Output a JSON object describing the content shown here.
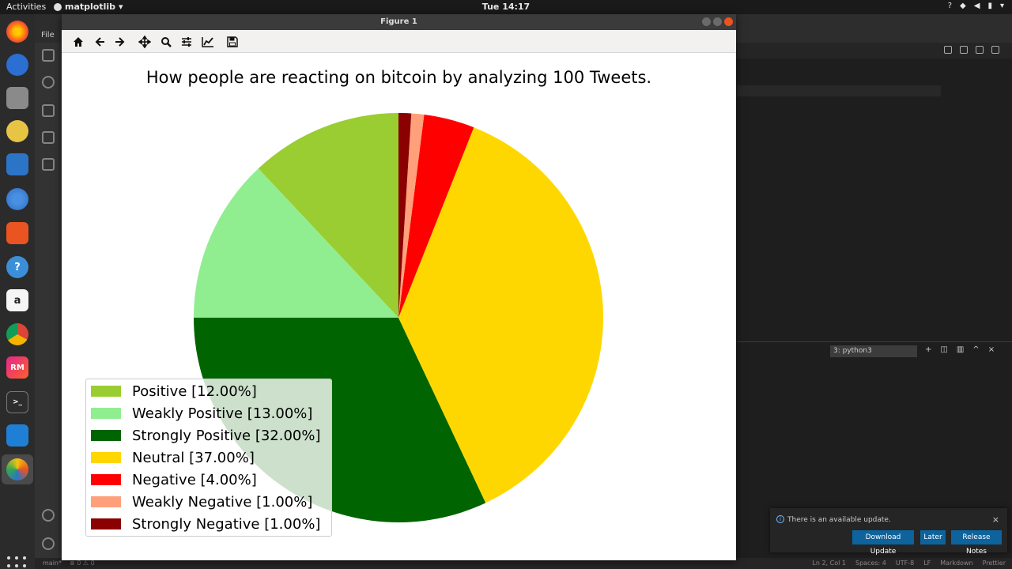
{
  "topbar": {
    "activities": "Activities",
    "app_menu": "matplotlib",
    "clock": "Tue 14:17"
  },
  "dock": {
    "icons": [
      "firefox-icon",
      "thunderbird-icon",
      "files-icon",
      "rhythmbox-icon",
      "libreoffice-writer-icon",
      "chromium-icon",
      "software-center-icon",
      "help-icon",
      "amazon-icon",
      "chrome-icon",
      "rubymine-icon",
      "terminal-icon",
      "vscode-icon",
      "matplotlib-icon",
      "show-apps-icon"
    ],
    "rubymine_label": "RM",
    "amazon_label": "a",
    "help_label": "?",
    "terminal_label": ">_"
  },
  "vscode": {
    "menu_file": "File",
    "terminal_select": "3: python3",
    "status": {
      "branch": "main*",
      "problems": "⊗ 0 ⚠ 0",
      "position": "Ln 2, Col 1",
      "spaces": "Spaces: 4",
      "encoding": "UTF-8",
      "eol": "LF",
      "language": "Markdown",
      "formatter": "Prettier"
    }
  },
  "notification": {
    "message": "There is an available update.",
    "download_label": "Download Update",
    "later_label": "Later",
    "release_notes_label": "Release Notes"
  },
  "window": {
    "title": "Figure 1",
    "toolbar": [
      "home-icon",
      "back-icon",
      "forward-icon",
      "pan-icon",
      "zoom-icon",
      "configure-subplots-icon",
      "edit-axis-icon",
      "save-icon"
    ]
  },
  "chart_data": {
    "type": "pie",
    "title": "How people are reacting on bitcoin by analyzing 100 Tweets.",
    "start_angle_deg": 90,
    "direction": "clockwise-from-top-in-reverse-order",
    "legend_placement": "lower-left",
    "slices": [
      {
        "label": "Positive [12.00%]",
        "value": 12,
        "color": "#9acd32"
      },
      {
        "label": "Weakly Positive [13.00%]",
        "value": 13,
        "color": "#90ee90"
      },
      {
        "label": "Strongly Positive [32.00%]",
        "value": 32,
        "color": "#006400"
      },
      {
        "label": "Neutral [37.00%]",
        "value": 37,
        "color": "#ffd700"
      },
      {
        "label": "Negative [4.00%]",
        "value": 4,
        "color": "#ff0000"
      },
      {
        "label": "Weakly Negative [1.00%]",
        "value": 1,
        "color": "#ffa07a"
      },
      {
        "label": "Strongly Negative [1.00%]",
        "value": 1,
        "color": "#8b0000"
      }
    ]
  }
}
